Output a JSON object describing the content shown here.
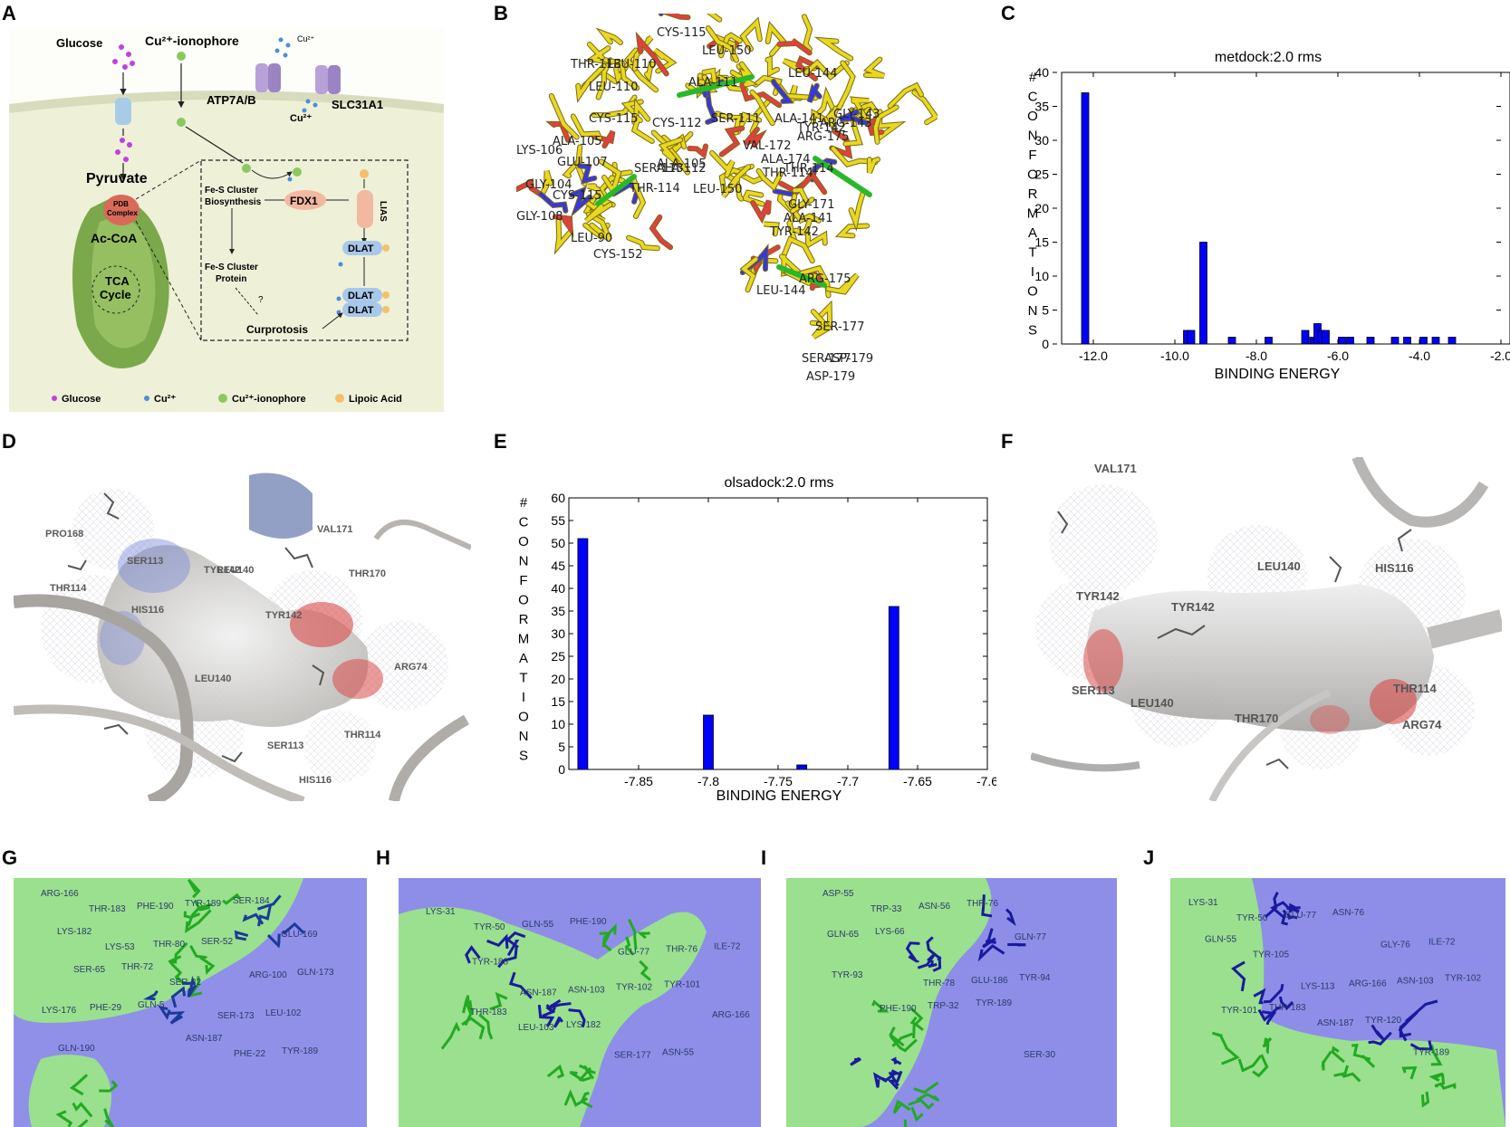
{
  "panel_labels": [
    "A",
    "B",
    "C",
    "D",
    "E",
    "F",
    "G",
    "H",
    "I",
    "J"
  ],
  "panelA": {
    "glucose": "Glucose",
    "cu_ionophore": "Cu²⁺-ionophore",
    "cu_top": "Cu²⁺",
    "atp7ab": "ATP7A/B",
    "cu_bottom": "Cu²⁺",
    "slc31a1": "SLC31A1",
    "pyruvate": "Pyruvate",
    "pdb_complex_1": "PDB",
    "pdb_complex_2": "Complex",
    "acetyl_coa": "Ac-CoA",
    "tca_1": "TCA",
    "tca_2": "Cycle",
    "fes_bio_1": "Fe-S Cluster",
    "fes_bio_2": "Biosynthesis",
    "fdx1": "FDX1",
    "lias": "LIAS",
    "dlat_1": "DLAT",
    "fes_prot_1": "Fe-S Cluster",
    "fes_prot_2": "Protein",
    "question": "?",
    "dlat_2": "DLAT",
    "dlat_3": "DLAT",
    "curprotosis": "Curprotosis",
    "legend": [
      "Glucose",
      "Cu²⁺",
      "Cu²⁺-ionophore",
      "Lipoic Acid"
    ],
    "colors": {
      "glucose": "#c040e0",
      "cu": "#4a8fd8",
      "ionophore": "#8cc860",
      "lipoic": "#f4c06a",
      "mito": "#7aa84a",
      "fdx1": "#f2b8a0",
      "dlat": "#a8c8ea",
      "pdb": "#d96a5a"
    }
  },
  "panelB_labels": [
    "CYS-115",
    "LEU-150",
    "THR-113",
    "LEU-110",
    "LEU-110",
    "ALA-111",
    "CYS-115",
    "ALA-105",
    "LYS-106",
    "GLU-107",
    "GLY-104",
    "GLY-108",
    "LEU-90",
    "CYS-152",
    "CYS-115",
    "LEU-150",
    "ALA-105",
    "THR-114",
    "SER-113",
    "ALA-112",
    "SER-111",
    "ALA-141",
    "ARG-175",
    "VAL-172",
    "ALA-174",
    "TYR-142",
    "THR-114",
    "LEU-144",
    "SER-177",
    "ASP-179",
    "ARG-143",
    "TYR-142",
    "ALA-141",
    "GLY-143",
    "ARG-175",
    "LEU-144",
    "SER-177",
    "ASP-179",
    "GLY-171",
    "THR-114",
    "CYS-112"
  ],
  "chart_data": [
    {
      "type": "bar",
      "title": "metdock:2.0 rms",
      "xlabel": "BINDING ENERGY",
      "ylabel": "# CONFORMATIONS",
      "xlim": [
        -13.0,
        -2.0
      ],
      "ylim": [
        0,
        40
      ],
      "xticks": [
        "-12.0",
        "-10.0",
        "-8.0",
        "-6.0",
        "-4.0",
        "-2.0"
      ],
      "yticks": [
        "0",
        "5",
        "10",
        "15",
        "20",
        "25",
        "30",
        "35",
        "40"
      ],
      "x": [
        -12.2,
        -9.7,
        -9.6,
        -9.3,
        -8.6,
        -7.7,
        -6.8,
        -6.6,
        -6.5,
        -6.4,
        -6.3,
        -5.9,
        -5.7,
        -5.2,
        -4.6,
        -4.3,
        -3.9,
        -3.6,
        -3.2
      ],
      "values": [
        37,
        2,
        2,
        15,
        1,
        1,
        2,
        1,
        3,
        2,
        2,
        1,
        1,
        1,
        1,
        1,
        1,
        1,
        1
      ],
      "bar_color": "#0000ff"
    },
    {
      "type": "bar",
      "title": "olsadock:2.0 rms",
      "xlabel": "BINDING ENERGY",
      "ylabel": "# CONFORMATIONS",
      "xlim": [
        -7.9,
        -7.6
      ],
      "ylim": [
        0,
        60
      ],
      "xticks": [
        "-7.85",
        "-7.8",
        "-7.75",
        "-7.7",
        "-7.65",
        "-7.6"
      ],
      "yticks": [
        "0",
        "5",
        "10",
        "15",
        "20",
        "25",
        "30",
        "35",
        "40",
        "45",
        "50",
        "55",
        "60"
      ],
      "x": [
        -7.89,
        -7.8,
        -7.733,
        -7.667
      ],
      "values": [
        51,
        12,
        1,
        36
      ],
      "bar_color": "#0000ff"
    }
  ],
  "panelD_labels": [
    "HIS116",
    "PRO168",
    "SER113",
    "TYR142",
    "LEU140",
    "VAL171",
    "THR114",
    "THR170",
    "TYR142",
    "LEU140",
    "ARG74",
    "SER113",
    "THR114",
    "HIS116"
  ],
  "panelF_labels": [
    "VAL171",
    "LEU140",
    "HIS116",
    "TYR142",
    "TYR142",
    "SER113",
    "LEU140",
    "THR170",
    "THR114",
    "ARG74"
  ],
  "panelG_labels": [
    "ARG-166",
    "THR-183",
    "PHE-190",
    "TYR-189",
    "SER-184",
    "GLU-169",
    "LYS-182",
    "LYS-53",
    "THR-80",
    "SER-52",
    "ARG-100",
    "GLN-173",
    "SER-65",
    "THR-72",
    "SER-32",
    "SER-173",
    "LEU-102",
    "LYS-176",
    "PHE-29",
    "GLN-5",
    "ASN-187",
    "PHE-22",
    "TYR-189",
    "GLN-190"
  ],
  "panelH_labels": [
    "LYS-31",
    "TYR-50",
    "GLN-55",
    "PHE-190",
    "GLU-77",
    "THR-76",
    "ILE-72",
    "TYR-188",
    "ASN-187",
    "ASN-103",
    "TYR-102",
    "TYR-101",
    "ARG-166",
    "THR-183",
    "LEU-103",
    "LYS-182",
    "SER-177",
    "ASN-55"
  ],
  "panelI_labels": [
    "ASP-55",
    "TRP-33",
    "ASN-56",
    "THR-76",
    "GLN-77",
    "GLN-65",
    "LYS-66",
    "THR-78",
    "GLU-186",
    "TYR-94",
    "TYR-93",
    "PHE-190",
    "TRP-32",
    "TYR-189",
    "SER-30"
  ],
  "panelJ_labels": [
    "LYS-31",
    "TYR-50",
    "GLU-77",
    "ASN-76",
    "GLY-76",
    "ILE-72",
    "GLN-55",
    "TYR-105",
    "LYS-113",
    "ARG-166",
    "ASN-103",
    "TYR-102",
    "TYR-101",
    "THR-183",
    "ASN-187",
    "TYR-120",
    "TYR-189"
  ]
}
